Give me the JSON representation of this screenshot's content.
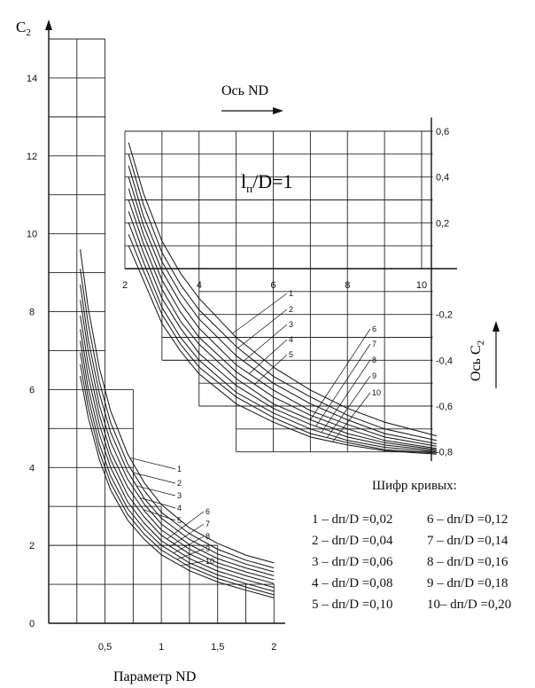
{
  "chart_data": [
    {
      "type": "line",
      "title": "",
      "xlabel": "Параметр ND",
      "ylabel": "C",
      "ylabel_sub": "2",
      "xlim": [
        0,
        2.1
      ],
      "ylim": [
        0,
        15
      ],
      "x_ticks": [
        "0,5",
        "1",
        "1,5",
        "2"
      ],
      "x_tick_values": [
        0.5,
        1,
        1.5,
        2
      ],
      "y_ticks": [
        "0",
        "2",
        "4",
        "6",
        "8",
        "10",
        "12",
        "14"
      ],
      "y_tick_values": [
        0,
        2,
        4,
        6,
        8,
        10,
        12,
        14
      ],
      "grid": true,
      "series": [
        {
          "name": "1",
          "x": [
            0.28,
            0.35,
            0.45,
            0.55,
            0.7,
            0.85,
            1.0,
            1.25,
            1.5,
            1.75,
            2.0
          ],
          "y": [
            9.6,
            8.1,
            6.55,
            5.45,
            4.35,
            3.6,
            3.05,
            2.45,
            2.05,
            1.75,
            1.55
          ]
        },
        {
          "name": "2",
          "x": [
            0.28,
            0.35,
            0.45,
            0.55,
            0.7,
            0.85,
            1.0,
            1.25,
            1.5,
            1.75,
            2.0
          ],
          "y": [
            9.1,
            7.7,
            6.2,
            5.15,
            4.1,
            3.4,
            2.85,
            2.3,
            1.9,
            1.62,
            1.42
          ]
        },
        {
          "name": "3",
          "x": [
            0.28,
            0.35,
            0.45,
            0.55,
            0.7,
            0.85,
            1.0,
            1.25,
            1.5,
            1.75,
            2.0
          ],
          "y": [
            8.7,
            7.3,
            5.9,
            4.9,
            3.9,
            3.2,
            2.7,
            2.15,
            1.78,
            1.52,
            1.32
          ]
        },
        {
          "name": "4",
          "x": [
            0.28,
            0.35,
            0.45,
            0.55,
            0.7,
            0.85,
            1.0,
            1.25,
            1.5,
            1.75,
            2.0
          ],
          "y": [
            8.3,
            7.0,
            5.6,
            4.65,
            3.7,
            3.05,
            2.55,
            2.02,
            1.66,
            1.42,
            1.22
          ]
        },
        {
          "name": "5",
          "x": [
            0.28,
            0.35,
            0.45,
            0.55,
            0.7,
            0.85,
            1.0,
            1.25,
            1.5,
            1.75,
            2.0
          ],
          "y": [
            7.9,
            6.65,
            5.35,
            4.4,
            3.5,
            2.88,
            2.4,
            1.9,
            1.55,
            1.32,
            1.12
          ]
        },
        {
          "name": "6",
          "x": [
            0.28,
            0.35,
            0.45,
            0.55,
            0.7,
            0.85,
            1.0,
            1.25,
            1.5,
            1.75,
            2.0
          ],
          "y": [
            7.55,
            6.35,
            5.1,
            4.2,
            3.3,
            2.72,
            2.26,
            1.78,
            1.45,
            1.22,
            1.02
          ]
        },
        {
          "name": "7",
          "x": [
            0.28,
            0.35,
            0.45,
            0.55,
            0.7,
            0.85,
            1.0,
            1.25,
            1.5,
            1.75,
            2.0
          ],
          "y": [
            7.25,
            6.05,
            4.85,
            4.0,
            3.12,
            2.56,
            2.12,
            1.66,
            1.34,
            1.12,
            0.92
          ]
        },
        {
          "name": "8",
          "x": [
            0.28,
            0.35,
            0.45,
            0.55,
            0.7,
            0.85,
            1.0,
            1.25,
            1.5,
            1.75,
            2.0
          ],
          "y": [
            6.95,
            5.8,
            4.6,
            3.78,
            2.95,
            2.42,
            2.0,
            1.55,
            1.24,
            1.02,
            0.82
          ]
        },
        {
          "name": "9",
          "x": [
            0.28,
            0.35,
            0.45,
            0.55,
            0.7,
            0.85,
            1.0,
            1.25,
            1.5,
            1.75,
            2.0
          ],
          "y": [
            6.65,
            5.55,
            4.4,
            3.6,
            2.8,
            2.28,
            1.88,
            1.45,
            1.15,
            0.93,
            0.73
          ]
        },
        {
          "name": "10",
          "x": [
            0.28,
            0.35,
            0.45,
            0.55,
            0.7,
            0.85,
            1.0,
            1.25,
            1.5,
            1.75,
            2.0
          ],
          "y": [
            6.35,
            5.3,
            4.2,
            3.42,
            2.65,
            2.15,
            1.76,
            1.35,
            1.06,
            0.85,
            0.65
          ]
        }
      ]
    },
    {
      "type": "line",
      "title": "l_п/D=1",
      "title_main": "l",
      "title_sub": "п",
      "title_rest": "/D=1",
      "xlabel": "Ось ND",
      "ylabel": "Ось C",
      "ylabel_sub": "2",
      "xlim": [
        2,
        10.4
      ],
      "ylim": [
        -0.85,
        0.65
      ],
      "x_ticks": [
        "2",
        "4",
        "6",
        "8",
        "10"
      ],
      "x_tick_values": [
        2,
        4,
        6,
        8,
        10
      ],
      "y_ticks": [
        "0,6",
        "0,4",
        "0,2",
        "-0,2",
        "-0,4",
        "-0,6",
        "-0,8"
      ],
      "y_tick_values": [
        0.6,
        0.4,
        0.2,
        -0.2,
        -0.4,
        -0.6,
        -0.8
      ],
      "grid": true,
      "series": [
        {
          "name": "1",
          "x": [
            2.1,
            2.5,
            3.0,
            3.5,
            4.0,
            5.0,
            6.0,
            7.0,
            8.0,
            9.0,
            10.4
          ],
          "y": [
            0.55,
            0.33,
            0.12,
            -0.02,
            -0.13,
            -0.3,
            -0.43,
            -0.53,
            -0.61,
            -0.67,
            -0.73
          ]
        },
        {
          "name": "2",
          "x": [
            2.1,
            2.5,
            3.0,
            3.5,
            4.0,
            5.0,
            6.0,
            7.0,
            8.0,
            9.0,
            10.4
          ],
          "y": [
            0.5,
            0.28,
            0.07,
            -0.07,
            -0.18,
            -0.34,
            -0.47,
            -0.56,
            -0.64,
            -0.7,
            -0.75
          ]
        },
        {
          "name": "3",
          "x": [
            2.1,
            2.5,
            3.0,
            3.5,
            4.0,
            5.0,
            6.0,
            7.0,
            8.0,
            9.0,
            10.4
          ],
          "y": [
            0.45,
            0.23,
            0.03,
            -0.11,
            -0.22,
            -0.38,
            -0.5,
            -0.59,
            -0.66,
            -0.72,
            -0.765
          ]
        },
        {
          "name": "4",
          "x": [
            2.1,
            2.5,
            3.0,
            3.5,
            4.0,
            5.0,
            6.0,
            7.0,
            8.0,
            9.0,
            10.4
          ],
          "y": [
            0.4,
            0.19,
            -0.01,
            -0.15,
            -0.26,
            -0.42,
            -0.53,
            -0.62,
            -0.68,
            -0.735,
            -0.775
          ]
        },
        {
          "name": "5",
          "x": [
            2.1,
            2.5,
            3.0,
            3.5,
            4.0,
            5.0,
            6.0,
            7.0,
            8.0,
            9.0,
            10.4
          ],
          "y": [
            0.35,
            0.15,
            -0.05,
            -0.19,
            -0.3,
            -0.45,
            -0.56,
            -0.64,
            -0.7,
            -0.75,
            -0.785
          ]
        },
        {
          "name": "6",
          "x": [
            2.1,
            2.5,
            3.0,
            3.5,
            4.0,
            5.0,
            6.0,
            7.0,
            8.0,
            9.0,
            10.4
          ],
          "y": [
            0.3,
            0.11,
            -0.09,
            -0.23,
            -0.33,
            -0.48,
            -0.59,
            -0.66,
            -0.72,
            -0.76,
            -0.79
          ]
        },
        {
          "name": "7",
          "x": [
            2.1,
            2.5,
            3.0,
            3.5,
            4.0,
            5.0,
            6.0,
            7.0,
            8.0,
            9.0,
            10.4
          ],
          "y": [
            0.25,
            0.07,
            -0.13,
            -0.26,
            -0.37,
            -0.51,
            -0.61,
            -0.68,
            -0.735,
            -0.77,
            -0.795
          ]
        },
        {
          "name": "8",
          "x": [
            2.1,
            2.5,
            3.0,
            3.5,
            4.0,
            5.0,
            6.0,
            7.0,
            8.0,
            9.0,
            10.4
          ],
          "y": [
            0.2,
            0.03,
            -0.17,
            -0.3,
            -0.4,
            -0.54,
            -0.63,
            -0.7,
            -0.75,
            -0.78,
            -0.8
          ]
        },
        {
          "name": "9",
          "x": [
            2.1,
            2.5,
            3.0,
            3.5,
            4.0,
            5.0,
            6.0,
            7.0,
            8.0,
            9.0,
            10.4
          ],
          "y": [
            0.15,
            -0.01,
            -0.2,
            -0.33,
            -0.43,
            -0.56,
            -0.65,
            -0.72,
            -0.76,
            -0.79,
            -0.805
          ]
        },
        {
          "name": "10",
          "x": [
            2.1,
            2.5,
            3.0,
            3.5,
            4.0,
            5.0,
            6.0,
            7.0,
            8.0,
            9.0,
            10.4
          ],
          "y": [
            0.1,
            -0.05,
            -0.24,
            -0.36,
            -0.46,
            -0.59,
            -0.67,
            -0.735,
            -0.77,
            -0.795,
            -0.81
          ]
        }
      ]
    }
  ],
  "legend": {
    "title": "Шифр кривых:",
    "items": [
      "1 – dп/D =0,02",
      "2 – dп/D =0,04",
      "3 – dп/D =0,06",
      "4 – dп/D =0,08",
      "5 – dп/D =0,10",
      "6 – dп/D =0,12",
      "7 – dп/D =0,14",
      "8 – dп/D =0,16",
      "9 – dп/D =0,18",
      "10– dп/D =0,20"
    ]
  }
}
